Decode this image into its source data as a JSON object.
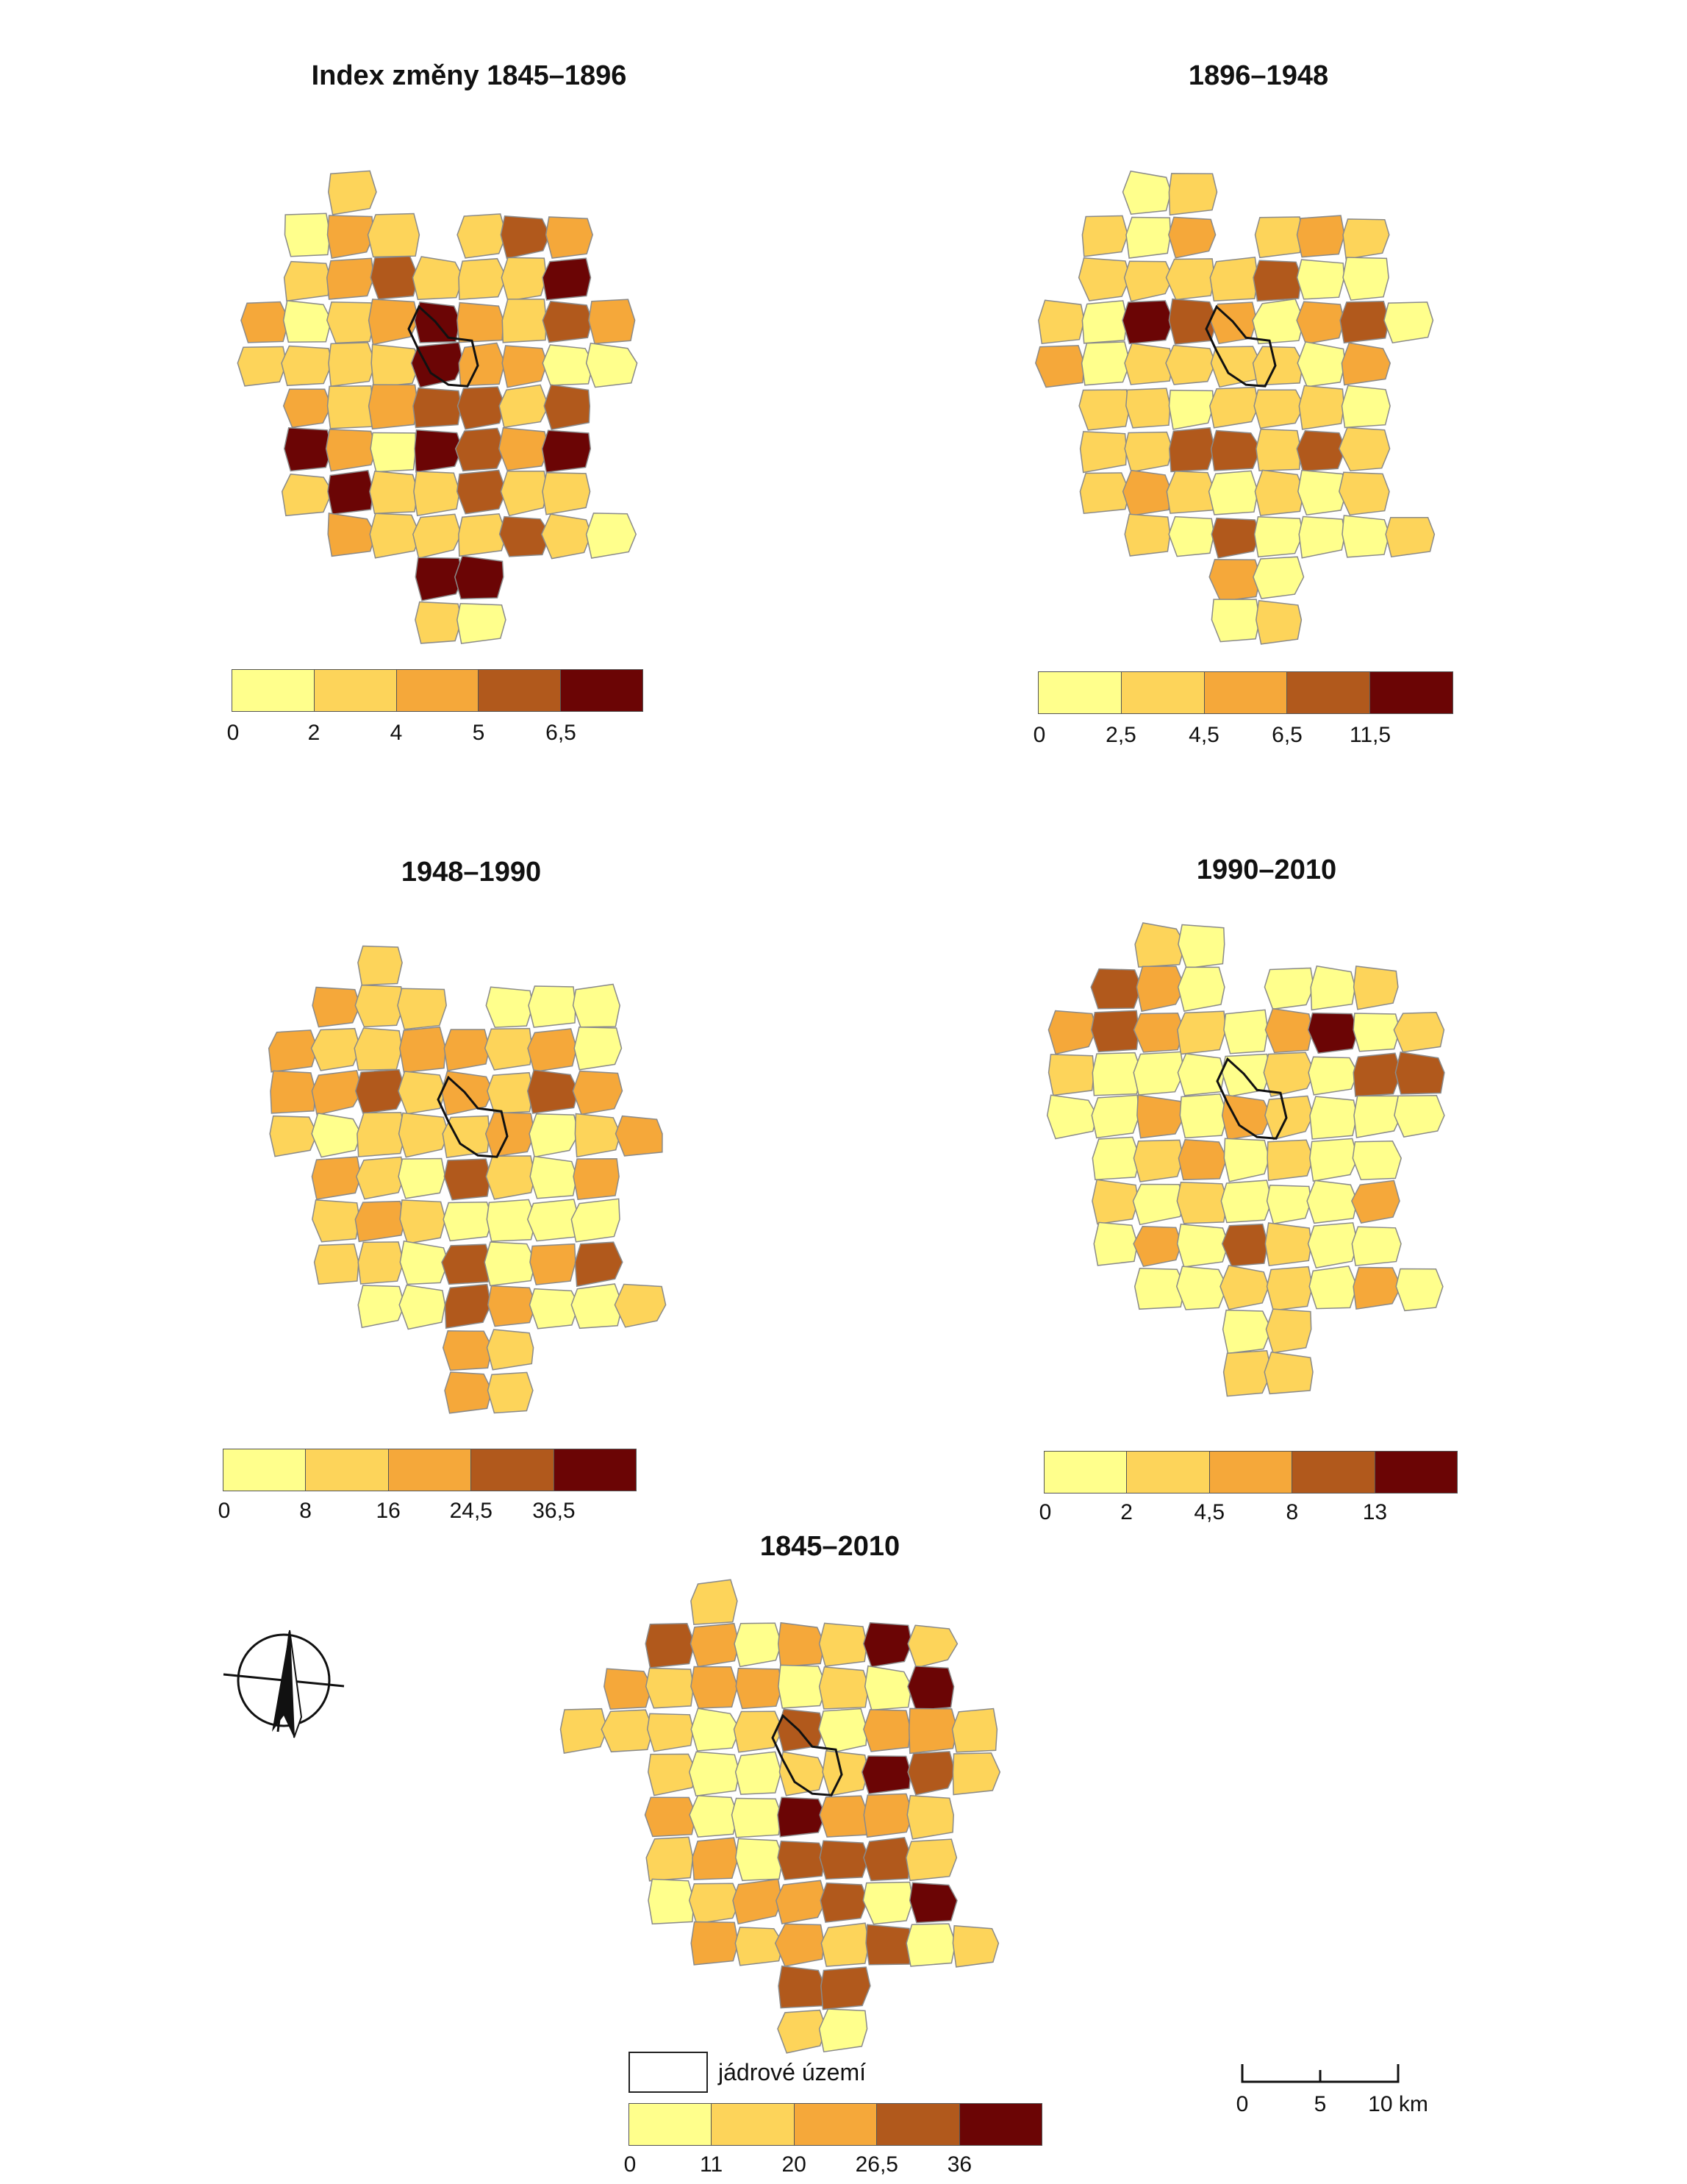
{
  "palette": [
    "#ffff8c",
    "#fdd45a",
    "#f5a83a",
    "#b1591c",
    "#6b0505"
  ],
  "core_label": "jádrové území",
  "scale": {
    "ticks": [
      "0",
      "5",
      "10 km"
    ]
  },
  "maps": [
    {
      "id": "m1",
      "title": "Index změny 1845–1896",
      "breaks": [
        "0",
        "2",
        "4",
        "5",
        "6,5"
      ],
      "class_counts": [
        6,
        24,
        14,
        9,
        9
      ]
    },
    {
      "id": "m2",
      "title": "1896–1948",
      "breaks": [
        "0",
        "2,5",
        "4,5",
        "6,5",
        "11,5"
      ],
      "class_counts": [
        18,
        28,
        8,
        7,
        1
      ]
    },
    {
      "id": "m3",
      "title": "1948–1990",
      "breaks": [
        "0",
        "8",
        "16",
        "24,5",
        "36,5"
      ],
      "class_counts": [
        18,
        22,
        18,
        6,
        0
      ]
    },
    {
      "id": "m4",
      "title": "1990–2010",
      "breaks": [
        "0",
        "2",
        "4,5",
        "8",
        "13"
      ],
      "class_counts": [
        34,
        16,
        10,
        5,
        1
      ]
    },
    {
      "id": "m5",
      "title": "1845–2010",
      "breaks": [
        "0",
        "11",
        "20",
        "26,5",
        "36"
      ],
      "class_counts": [
        14,
        22,
        17,
        11,
        5
      ]
    }
  ],
  "icons": {
    "north_arrow": "north-arrow-icon"
  }
}
